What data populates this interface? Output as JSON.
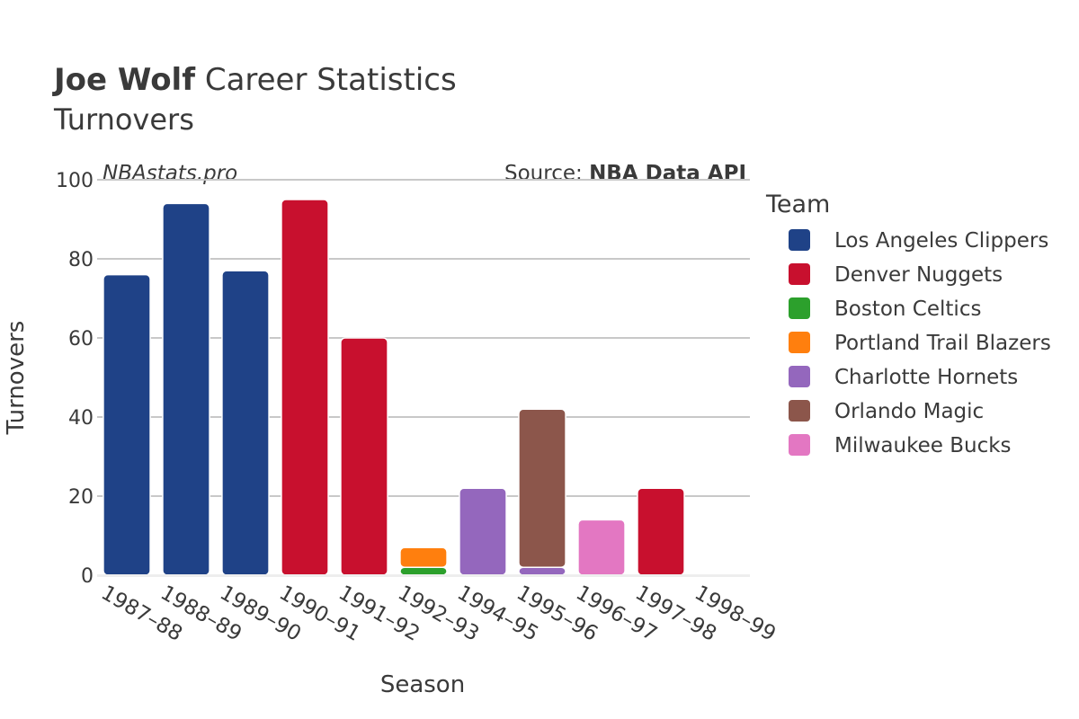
{
  "header": {
    "title_bold": "Joe Wolf",
    "title_rest": " Career Statistics",
    "subtitle": "Turnovers",
    "watermark": "NBAstats.pro",
    "source_prefix": "Source: ",
    "source_bold": "NBA Data API"
  },
  "legend": {
    "title": "Team"
  },
  "chart_data": {
    "type": "bar",
    "stacked": true,
    "xlabel": "Season",
    "ylabel": "Turnovers",
    "ylim": [
      0,
      100
    ],
    "yticks": [
      0,
      20,
      40,
      60,
      80,
      100
    ],
    "grid": true,
    "legend_position": "right",
    "categories": [
      "1987–88",
      "1988–89",
      "1989–90",
      "1990–91",
      "1991–92",
      "1992–93",
      "1994–95",
      "1995–96",
      "1996–97",
      "1997–98",
      "1998–99"
    ],
    "series": [
      {
        "name": "Los Angeles Clippers",
        "color": "#1f4287",
        "values": [
          76,
          94,
          77,
          0,
          0,
          0,
          0,
          0,
          0,
          0,
          0
        ]
      },
      {
        "name": "Denver Nuggets",
        "color": "#c8102e",
        "values": [
          0,
          0,
          0,
          95,
          60,
          0,
          0,
          0,
          0,
          22,
          0
        ]
      },
      {
        "name": "Boston Celtics",
        "color": "#2ca02c",
        "values": [
          0,
          0,
          0,
          0,
          0,
          2,
          0,
          0,
          0,
          0,
          0
        ]
      },
      {
        "name": "Portland Trail Blazers",
        "color": "#ff7f0e",
        "values": [
          0,
          0,
          0,
          0,
          0,
          5,
          0,
          0,
          0,
          0,
          0
        ]
      },
      {
        "name": "Charlotte Hornets",
        "color": "#9467bd",
        "values": [
          0,
          0,
          0,
          0,
          0,
          0,
          22,
          2,
          0,
          0,
          0
        ]
      },
      {
        "name": "Orlando Magic",
        "color": "#8c564b",
        "values": [
          0,
          0,
          0,
          0,
          0,
          0,
          0,
          40,
          0,
          0,
          0
        ]
      },
      {
        "name": "Milwaukee Bucks",
        "color": "#e377c2",
        "values": [
          0,
          0,
          0,
          0,
          0,
          0,
          0,
          0,
          14,
          0,
          0
        ]
      }
    ]
  }
}
